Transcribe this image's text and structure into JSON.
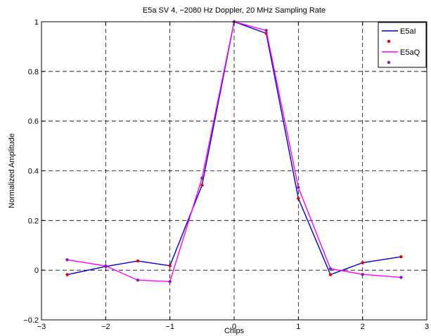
{
  "chart_data": {
    "type": "line",
    "title": "E5a SV 4, −2080 Hz Doppler, 20 MHz Sampling Rate",
    "xlabel": "Chips",
    "ylabel": "Normalized Amplitude",
    "xlim": [
      -3,
      3
    ],
    "ylim": [
      -0.2,
      1
    ],
    "xticks": [
      -3,
      -2,
      -1,
      0,
      1,
      2,
      3
    ],
    "xtick_labels": [
      "−3",
      "−2",
      "−1",
      "0",
      "1",
      "2",
      "3"
    ],
    "yticks": [
      -0.2,
      0,
      0.2,
      0.4,
      0.6,
      0.8,
      1
    ],
    "ytick_labels": [
      "−0.2",
      "0",
      "0.2",
      "0.4",
      "0.6",
      "0.8",
      "1"
    ],
    "grid": true,
    "legend_position": "top-right",
    "series": [
      {
        "name": "E5aI",
        "color": "#0000cc",
        "marker_color": "#dd0000",
        "x": [
          -2.6,
          -2.0,
          -1.5,
          -1.0,
          -0.5,
          0.0,
          0.5,
          1.0,
          1.5,
          2.0,
          2.6
        ],
        "y": [
          -0.018,
          0.015,
          0.037,
          0.018,
          0.342,
          1.0,
          0.953,
          0.289,
          -0.018,
          0.03,
          0.054
        ]
      },
      {
        "name": "E5aQ",
        "color": "#ff00ff",
        "marker_color": "#7722cc",
        "x": [
          -2.6,
          -2.0,
          -1.5,
          -1.0,
          -0.5,
          0.0,
          0.5,
          1.0,
          1.5,
          2.0,
          2.6
        ],
        "y": [
          0.042,
          0.017,
          -0.04,
          -0.046,
          0.371,
          1.0,
          0.965,
          0.333,
          0.006,
          -0.017,
          -0.029
        ]
      }
    ]
  }
}
